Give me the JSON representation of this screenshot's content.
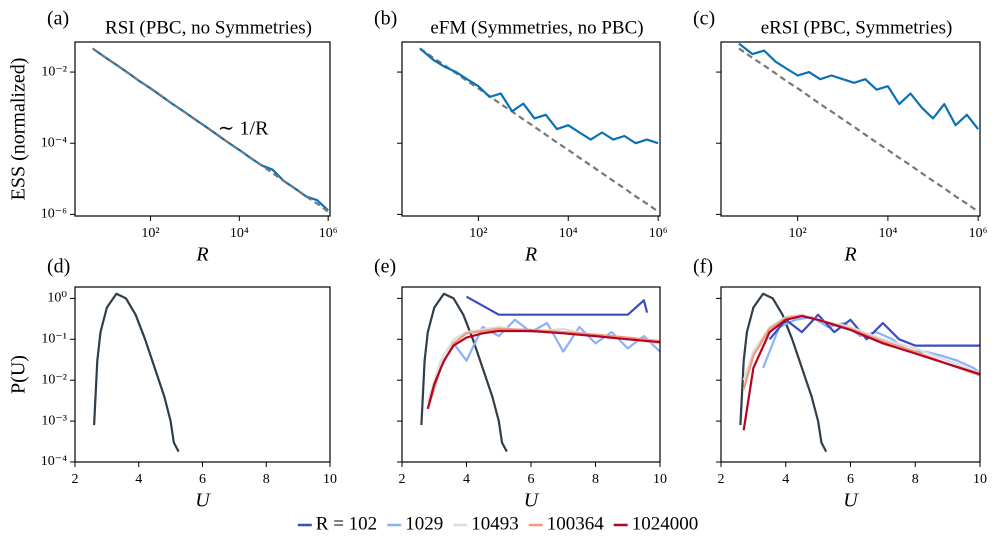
{
  "chart_data": [
    {
      "type": "line",
      "label": "(a)",
      "title": "RSI (PBC, no Symmetries)",
      "xlabel": "R",
      "ylabel": "ESS (normalized)",
      "annotation": "∼ 1/R",
      "xscale": "log",
      "yscale": "log",
      "xlim": [
        2,
        1100000
      ],
      "ylim": [
        9e-07,
        0.07
      ],
      "xticks": [
        {
          "value": 100,
          "label": "10²"
        },
        {
          "value": 10000,
          "label": "10⁴"
        },
        {
          "value": 1000000,
          "label": "10⁶"
        }
      ],
      "yticks": [
        {
          "value": 1e-06,
          "label": "10⁻⁶"
        },
        {
          "value": 0.0001,
          "label": "10⁻⁴"
        },
        {
          "value": 0.01,
          "label": "10⁻²"
        }
      ],
      "x": [
        5,
        10,
        18,
        32,
        56,
        100,
        178,
        316,
        562,
        1000,
        1778,
        3162,
        5623,
        10000,
        17783,
        31623,
        56234,
        100000,
        177828,
        316228,
        562341,
        1000000
      ],
      "series": [
        {
          "color": "#0a72b4",
          "linestyle": "solid",
          "values": [
            0.046,
            0.025,
            0.0153,
            0.0093,
            0.0056,
            0.0035,
            0.0021,
            0.00126,
            0.00078,
            0.00047,
            0.00029,
            0.000174,
            0.000105,
            6.5e-05,
            3.9e-05,
            2.4e-05,
            1.8e-05,
            8.7e-06,
            5.4e-06,
            3.2e-06,
            2.5e-06,
            1.3e-06
          ]
        },
        {
          "color": "#777777",
          "linestyle": "dashed",
          "values": [
            0.046,
            0.025,
            0.0153,
            0.0093,
            0.0056,
            0.0035,
            0.0021,
            0.00126,
            0.00078,
            0.00047,
            0.00029,
            0.000174,
            0.000105,
            6.5e-05,
            3.9e-05,
            2.4e-05,
            1.45e-05,
            8.7e-06,
            5.4e-06,
            3.2e-06,
            2e-06,
            1.2e-06
          ]
        }
      ]
    },
    {
      "type": "line",
      "label": "(b)",
      "title": "eFM (Symmetries, no PBC)",
      "xlabel": "R",
      "xscale": "log",
      "yscale": "log",
      "xlim": [
        2,
        1100000
      ],
      "ylim": [
        9e-07,
        0.07
      ],
      "xticks": [
        {
          "value": 100,
          "label": "10²"
        },
        {
          "value": 10000,
          "label": "10⁴"
        },
        {
          "value": 1000000,
          "label": "10⁶"
        }
      ],
      "yticks": [
        1e-06,
        0.0001,
        0.01
      ],
      "x": [
        5,
        10,
        18,
        32,
        56,
        100,
        178,
        316,
        562,
        1000,
        1778,
        3162,
        5623,
        10000,
        17783,
        31623,
        56234,
        100000,
        177828,
        316228,
        562341,
        1000000
      ],
      "series": [
        {
          "color": "#777777",
          "linestyle": "dashed",
          "values": [
            0.046,
            0.025,
            0.0153,
            0.0093,
            0.0056,
            0.0035,
            0.0021,
            0.00126,
            0.00078,
            0.00047,
            0.00029,
            0.000174,
            0.000105,
            6.5e-05,
            3.9e-05,
            2.4e-05,
            1.45e-05,
            8.7e-06,
            5.4e-06,
            3.2e-06,
            2e-06,
            1.2e-06
          ]
        },
        {
          "color": "#0a72b4",
          "linestyle": "solid",
          "values": [
            0.046,
            0.022,
            0.014,
            0.01,
            0.0063,
            0.004,
            0.002,
            0.0025,
            0.00079,
            0.0013,
            0.0005,
            0.00063,
            0.00025,
            0.00032,
            0.0002,
            0.000126,
            0.0002,
            0.000126,
            0.00016,
            0.0001,
            0.000126,
            0.0001
          ]
        }
      ]
    },
    {
      "type": "line",
      "label": "(c)",
      "title": "eRSI (PBC, Symmetries)",
      "xlabel": "R",
      "xscale": "log",
      "yscale": "log",
      "xlim": [
        2,
        1100000
      ],
      "ylim": [
        9e-07,
        0.07
      ],
      "xticks": [
        {
          "value": 100,
          "label": "10²"
        },
        {
          "value": 10000,
          "label": "10⁴"
        },
        {
          "value": 1000000,
          "label": "10⁶"
        }
      ],
      "yticks": [
        1e-06,
        0.0001,
        0.01
      ],
      "x": [
        5,
        10,
        18,
        32,
        56,
        100,
        178,
        316,
        562,
        1000,
        1778,
        3162,
        5623,
        10000,
        17783,
        31623,
        56234,
        100000,
        177828,
        316228,
        562341,
        1000000
      ],
      "series": [
        {
          "color": "#777777",
          "linestyle": "dashed",
          "values": [
            0.046,
            0.025,
            0.0153,
            0.0093,
            0.0056,
            0.0035,
            0.0021,
            0.00126,
            0.00078,
            0.00047,
            0.00029,
            0.000174,
            0.000105,
            6.5e-05,
            3.9e-05,
            2.4e-05,
            1.45e-05,
            8.7e-06,
            5.4e-06,
            3.2e-06,
            2e-06,
            1.2e-06
          ]
        },
        {
          "color": "#0a72b4",
          "linestyle": "solid",
          "values": [
            0.063,
            0.032,
            0.04,
            0.02,
            0.0126,
            0.008,
            0.01,
            0.0063,
            0.008,
            0.0063,
            0.005,
            0.0063,
            0.0032,
            0.004,
            0.00126,
            0.0025,
            0.001,
            0.0005,
            0.00126,
            0.00032,
            0.00063,
            0.00025
          ]
        }
      ]
    },
    {
      "type": "line",
      "label": "(d)",
      "xlabel": "U",
      "ylabel": "P(U)",
      "yscale": "log",
      "xlim": [
        2,
        10
      ],
      "ylim": [
        0.0001,
        1.9
      ],
      "xticks": [
        2,
        4,
        6,
        8,
        10
      ],
      "yticks": [
        {
          "value": 0.0001,
          "label": "10⁻⁴"
        },
        {
          "value": 0.001,
          "label": "10⁻³"
        },
        {
          "value": 0.01,
          "label": "10⁻²"
        },
        {
          "value": 0.1,
          "label": "10⁻¹"
        },
        {
          "value": 1,
          "label": "10⁰"
        }
      ],
      "series": [
        {
          "color": "#2f3e4a",
          "x": [
            2.6,
            2.7,
            2.8,
            3.0,
            3.3,
            3.6,
            3.9,
            4.2,
            4.5,
            4.8,
            5.0,
            5.1,
            5.25
          ],
          "values": [
            0.0008,
            0.03,
            0.15,
            0.6,
            1.3,
            1.0,
            0.4,
            0.1,
            0.02,
            0.004,
            0.001,
            0.0003,
            0.00018
          ]
        }
      ]
    },
    {
      "type": "line",
      "label": "(e)",
      "xlabel": "U",
      "yscale": "log",
      "xlim": [
        2,
        10
      ],
      "ylim": [
        0.0001,
        1.9
      ],
      "xticks": [
        2,
        4,
        6,
        8,
        10
      ],
      "yticks": [
        0.0001,
        0.001,
        0.01,
        0.1,
        1
      ],
      "series": [
        {
          "color": "#2f3e4a",
          "x": [
            2.6,
            2.7,
            2.8,
            3.0,
            3.3,
            3.6,
            3.9,
            4.2,
            4.5,
            4.8,
            5.0,
            5.1,
            5.25
          ],
          "values": [
            0.0008,
            0.03,
            0.15,
            0.6,
            1.3,
            1.0,
            0.4,
            0.1,
            0.02,
            0.004,
            0.001,
            0.0003,
            0.00018
          ]
        },
        {
          "color": "#3b4cc0",
          "x": [
            4.0,
            5.0,
            9.0,
            9.5,
            9.6
          ],
          "values": [
            1.1,
            0.4,
            0.4,
            0.9,
            0.45
          ]
        },
        {
          "color": "#8db0fe",
          "x": [
            3.6,
            4.0,
            4.5,
            5.0,
            5.5,
            6.0,
            6.5,
            7.0,
            7.5,
            8.0,
            8.5,
            9.0,
            9.5,
            10
          ],
          "values": [
            0.08,
            0.03,
            0.2,
            0.12,
            0.3,
            0.15,
            0.25,
            0.05,
            0.2,
            0.08,
            0.15,
            0.06,
            0.12,
            0.05
          ]
        },
        {
          "color": "#dddddd",
          "x": [
            2.8,
            3.2,
            3.6,
            4,
            5,
            6,
            7,
            8,
            9,
            10
          ],
          "values": [
            0.003,
            0.03,
            0.1,
            0.15,
            0.2,
            0.15,
            0.18,
            0.12,
            0.1,
            0.08
          ]
        },
        {
          "color": "#f4987a",
          "x": [
            2.8,
            3.2,
            3.6,
            4,
            5,
            6,
            7,
            8,
            9,
            10
          ],
          "values": [
            0.002,
            0.02,
            0.08,
            0.14,
            0.18,
            0.17,
            0.15,
            0.13,
            0.11,
            0.09
          ]
        },
        {
          "color": "#b40426",
          "x": [
            2.8,
            3.0,
            3.3,
            3.6,
            4.0,
            4.5,
            5,
            6,
            7,
            8,
            9,
            10
          ],
          "values": [
            0.002,
            0.008,
            0.03,
            0.07,
            0.11,
            0.14,
            0.16,
            0.16,
            0.14,
            0.12,
            0.1,
            0.085
          ]
        }
      ]
    },
    {
      "type": "line",
      "label": "(f)",
      "xlabel": "U",
      "yscale": "log",
      "xlim": [
        2,
        10
      ],
      "ylim": [
        0.0001,
        1.9
      ],
      "xticks": [
        2,
        4,
        6,
        8,
        10
      ],
      "yticks": [
        0.0001,
        0.001,
        0.01,
        0.1,
        1
      ],
      "series": [
        {
          "color": "#2f3e4a",
          "x": [
            2.6,
            2.7,
            2.8,
            3.0,
            3.3,
            3.6,
            3.9,
            4.2,
            4.5,
            4.8,
            5.0,
            5.1,
            5.25
          ],
          "values": [
            0.0008,
            0.03,
            0.15,
            0.6,
            1.3,
            1.0,
            0.4,
            0.1,
            0.02,
            0.004,
            0.001,
            0.0003,
            0.00018
          ]
        },
        {
          "color": "#8db0fe",
          "x": [
            3.3,
            3.8,
            4.3,
            4.8,
            5.3,
            5.8,
            6.3,
            6.8,
            7.3,
            7.8,
            8.3,
            8.8,
            9.3,
            9.8,
            10
          ],
          "values": [
            0.02,
            0.2,
            0.3,
            0.35,
            0.2,
            0.25,
            0.12,
            0.15,
            0.1,
            0.05,
            0.05,
            0.04,
            0.03,
            0.02,
            0.015
          ]
        },
        {
          "color": "#3b4cc0",
          "x": [
            3.5,
            4,
            4.5,
            5,
            5.5,
            6,
            6.5,
            7,
            7.5,
            8,
            9,
            10
          ],
          "values": [
            0.1,
            0.3,
            0.15,
            0.4,
            0.15,
            0.3,
            0.1,
            0.25,
            0.1,
            0.07,
            0.07,
            0.07
          ]
        },
        {
          "color": "#dddddd",
          "x": [
            2.7,
            3,
            3.5,
            4,
            4.5,
            5,
            6,
            7,
            8,
            9,
            10
          ],
          "values": [
            0.01,
            0.05,
            0.2,
            0.35,
            0.4,
            0.3,
            0.2,
            0.1,
            0.06,
            0.03,
            0.015
          ]
        },
        {
          "color": "#f4987a",
          "x": [
            2.7,
            3,
            3.5,
            4,
            4.5,
            5,
            6,
            7,
            8,
            9,
            10
          ],
          "values": [
            0.006,
            0.04,
            0.18,
            0.33,
            0.38,
            0.3,
            0.18,
            0.09,
            0.05,
            0.025,
            0.013
          ]
        },
        {
          "color": "#b40426",
          "x": [
            2.7,
            3.0,
            3.5,
            4.0,
            4.5,
            5,
            6,
            7,
            8,
            9,
            10
          ],
          "values": [
            0.0006,
            0.02,
            0.15,
            0.3,
            0.37,
            0.3,
            0.17,
            0.08,
            0.045,
            0.025,
            0.014
          ]
        }
      ]
    }
  ],
  "legend": [
    {
      "label": "R = 102",
      "color": "#3b4cc0"
    },
    {
      "label": "1029",
      "color": "#8db0fe"
    },
    {
      "label": "10493",
      "color": "#dddddd"
    },
    {
      "label": "100364",
      "color": "#f4987a"
    },
    {
      "label": "1024000",
      "color": "#b40426"
    }
  ]
}
